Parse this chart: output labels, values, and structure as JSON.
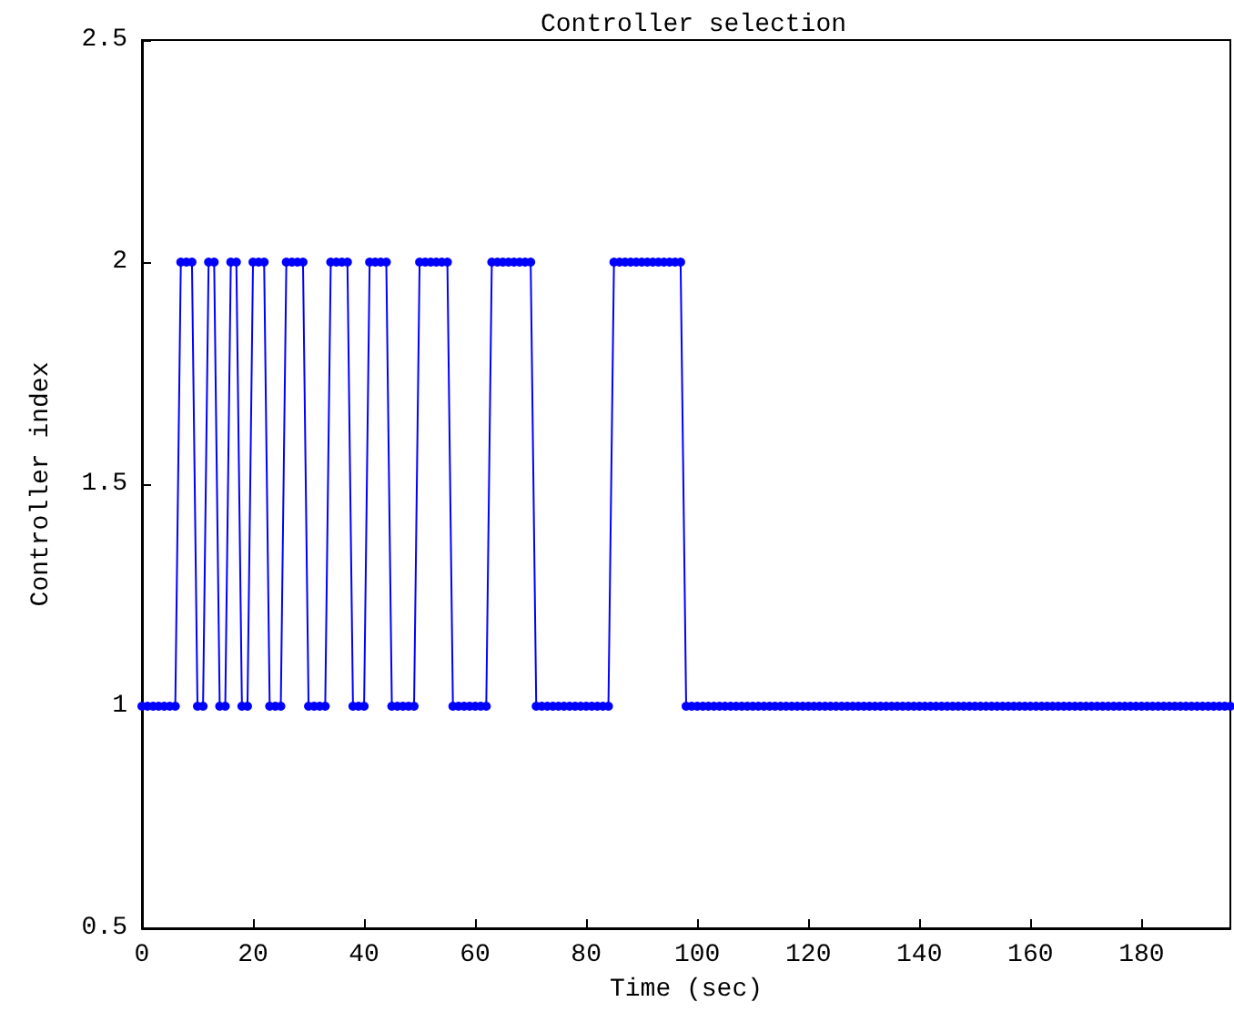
{
  "chart_data": {
    "type": "line",
    "title": "Controller selection",
    "xlabel": "Time (sec)",
    "ylabel": "Controller index",
    "x": [
      0,
      1,
      2,
      3,
      4,
      5,
      6,
      7,
      8,
      9,
      10,
      11,
      12,
      13,
      14,
      15,
      16,
      17,
      18,
      19,
      20,
      21,
      22,
      23,
      24,
      25,
      26,
      27,
      28,
      29,
      30,
      31,
      32,
      33,
      34,
      35,
      36,
      37,
      38,
      39,
      40,
      41,
      42,
      43,
      44,
      45,
      46,
      47,
      48,
      49,
      50,
      51,
      52,
      53,
      54,
      55,
      56,
      57,
      58,
      59,
      60,
      61,
      62,
      63,
      64,
      65,
      66,
      67,
      68,
      69,
      70,
      71,
      72,
      73,
      74,
      75,
      76,
      77,
      78,
      79,
      80,
      81,
      82,
      83,
      84,
      85,
      86,
      87,
      88,
      89,
      90,
      91,
      92,
      93,
      94,
      95,
      96,
      97,
      98,
      99,
      100,
      101,
      102,
      103,
      104,
      105,
      106,
      107,
      108,
      109,
      110,
      111,
      112,
      113,
      114,
      115,
      116,
      117,
      118,
      119,
      120,
      121,
      122,
      123,
      124,
      125,
      126,
      127,
      128,
      129,
      130,
      131,
      132,
      133,
      134,
      135,
      136,
      137,
      138,
      139,
      140,
      141,
      142,
      143,
      144,
      145,
      146,
      147,
      148,
      149,
      150,
      151,
      152,
      153,
      154,
      155,
      156,
      157,
      158,
      159,
      160,
      161,
      162,
      163,
      164,
      165,
      166,
      167,
      168,
      169,
      170,
      171,
      172,
      173,
      174,
      175,
      176,
      177,
      178,
      179,
      180,
      181,
      182,
      183,
      184,
      185,
      186,
      187,
      188,
      189,
      190,
      191,
      192,
      193,
      194,
      195,
      196
    ],
    "series": [
      {
        "color": "#0000ff",
        "values": [
          1,
          1,
          1,
          1,
          1,
          1,
          1,
          2,
          2,
          2,
          1,
          1,
          2,
          2,
          1,
          1,
          2,
          2,
          1,
          1,
          2,
          2,
          2,
          1,
          1,
          1,
          2,
          2,
          2,
          2,
          1,
          1,
          1,
          1,
          2,
          2,
          2,
          2,
          1,
          1,
          1,
          2,
          2,
          2,
          2,
          1,
          1,
          1,
          1,
          1,
          2,
          2,
          2,
          2,
          2,
          2,
          1,
          1,
          1,
          1,
          1,
          1,
          1,
          2,
          2,
          2,
          2,
          2,
          2,
          2,
          2,
          1,
          1,
          1,
          1,
          1,
          1,
          1,
          1,
          1,
          1,
          1,
          1,
          1,
          1,
          2,
          2,
          2,
          2,
          2,
          2,
          2,
          2,
          2,
          2,
          2,
          2,
          2,
          1,
          1,
          1,
          1,
          1,
          1,
          1,
          1,
          1,
          1,
          1,
          1,
          1,
          1,
          1,
          1,
          1,
          1,
          1,
          1,
          1,
          1,
          1,
          1,
          1,
          1,
          1,
          1,
          1,
          1,
          1,
          1,
          1,
          1,
          1,
          1,
          1,
          1,
          1,
          1,
          1,
          1,
          1,
          1,
          1,
          1,
          1,
          1,
          1,
          1,
          1,
          1,
          1,
          1,
          1,
          1,
          1,
          1,
          1,
          1,
          1,
          1,
          1,
          1,
          1,
          1,
          1,
          1,
          1,
          1,
          1,
          1,
          1,
          1,
          1,
          1,
          1,
          1,
          1,
          1,
          1,
          1,
          1,
          1,
          1,
          1,
          1,
          1,
          1,
          1,
          1,
          1,
          1,
          1,
          1,
          1,
          1,
          1,
          1
        ]
      }
    ],
    "xlim": [
      0,
      196
    ],
    "xticks": [
      0,
      20,
      40,
      60,
      80,
      100,
      120,
      140,
      160,
      180
    ],
    "ylim": [
      0.5,
      2.5
    ],
    "yticks": [
      0.5,
      1,
      1.5,
      2,
      2.5
    ],
    "marker": "circle"
  }
}
